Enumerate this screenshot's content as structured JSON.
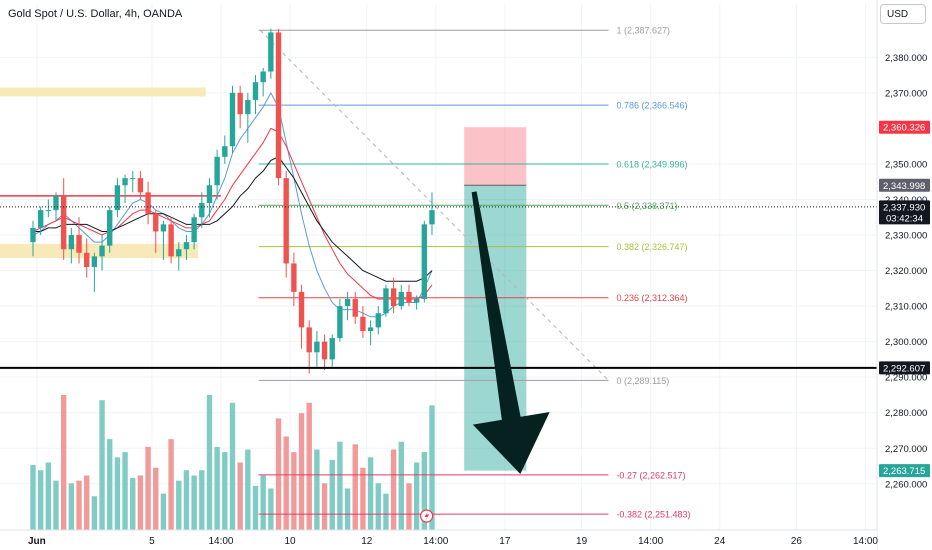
{
  "header": {
    "title": "Gold Spot / U.S. Dollar, 4h, OANDA",
    "currency_button": "USD"
  },
  "chart_data": {
    "type": "candlestick",
    "symbol": "Gold Spot / U.S. Dollar",
    "interval": "4h",
    "source": "OANDA",
    "ylim": [
      2247,
      2395
    ],
    "y_ticks": [
      "2,380.000",
      "2,370.000",
      "2,350.000",
      "2,340.000",
      "2,330.000",
      "2,320.000",
      "2,310.000",
      "2,300.000",
      "2,290.000",
      "2,280.000",
      "2,270.000",
      "2,260.000"
    ],
    "y_tick_values": [
      2380,
      2370,
      2350,
      2340,
      2330,
      2320,
      2310,
      2300,
      2290,
      2280,
      2270,
      2260
    ],
    "x_ticks": [
      "Jun",
      "5",
      "14:00",
      "10",
      "12",
      "14:00",
      "17",
      "19",
      "14:00",
      "24",
      "26",
      "14:00"
    ],
    "x_tick_pos": [
      0.5,
      15.5,
      24.5,
      33.5,
      43.5,
      52.5,
      61.5,
      71.5,
      80.5,
      89.5,
      99.5,
      108.5
    ],
    "x_range": [
      -4.3,
      110
    ],
    "candles": [
      [
        2328,
        2334,
        2324,
        2332
      ],
      [
        2332,
        2338,
        2330,
        2337
      ],
      [
        2337,
        2340,
        2335,
        2337
      ],
      [
        2337,
        2342,
        2334,
        2341
      ],
      [
        2341,
        2346,
        2323,
        2326
      ],
      [
        2326,
        2332,
        2322,
        2330
      ],
      [
        2330,
        2335,
        2322,
        2325
      ],
      [
        2325,
        2329,
        2318,
        2321
      ],
      [
        2321,
        2325,
        2314,
        2324
      ],
      [
        2324,
        2330,
        2320,
        2327
      ],
      [
        2327,
        2338,
        2325,
        2337
      ],
      [
        2337,
        2346,
        2335,
        2344
      ],
      [
        2344,
        2347,
        2339,
        2346
      ],
      [
        2346,
        2348,
        2342,
        2346
      ],
      [
        2346,
        2348,
        2340,
        2342
      ],
      [
        2342,
        2345,
        2333,
        2336
      ],
      [
        2336,
        2337,
        2325,
        2331
      ],
      [
        2331,
        2334,
        2323,
        2333
      ],
      [
        2333,
        2335,
        2322,
        2324
      ],
      [
        2324,
        2328,
        2320,
        2326
      ],
      [
        2326,
        2330,
        2323,
        2328
      ],
      [
        2328,
        2336,
        2326,
        2335
      ],
      [
        2335,
        2342,
        2332,
        2339
      ],
      [
        2339,
        2346,
        2335,
        2344
      ],
      [
        2344,
        2354,
        2340,
        2352
      ],
      [
        2352,
        2358,
        2350,
        2355
      ],
      [
        2355,
        2372,
        2353,
        2370
      ],
      [
        2370,
        2372,
        2360,
        2364
      ],
      [
        2364,
        2370,
        2356,
        2368
      ],
      [
        2368,
        2375,
        2364,
        2373
      ],
      [
        2373,
        2377,
        2369,
        2376
      ],
      [
        2376,
        2388,
        2374,
        2387
      ],
      [
        2387,
        2388,
        2344,
        2346
      ],
      [
        2346,
        2348,
        2318,
        2322
      ],
      [
        2322,
        2325,
        2310,
        2314
      ],
      [
        2314,
        2316,
        2298,
        2304
      ],
      [
        2304,
        2306,
        2291,
        2297
      ],
      [
        2297,
        2303,
        2293,
        2300
      ],
      [
        2300,
        2302,
        2292,
        2295
      ],
      [
        2295,
        2302,
        2293,
        2301
      ],
      [
        2301,
        2312,
        2300,
        2310
      ],
      [
        2310,
        2314,
        2306,
        2312
      ],
      [
        2312,
        2314,
        2305,
        2307
      ],
      [
        2307,
        2310,
        2301,
        2303
      ],
      [
        2303,
        2306,
        2299,
        2304
      ],
      [
        2304,
        2310,
        2302,
        2308
      ],
      [
        2308,
        2316,
        2307,
        2315
      ],
      [
        2315,
        2318,
        2308,
        2310
      ],
      [
        2310,
        2316,
        2309,
        2314
      ],
      [
        2314,
        2316,
        2310,
        2311
      ],
      [
        2311,
        2313,
        2309,
        2312
      ],
      [
        2312,
        2334,
        2311,
        2333
      ],
      [
        2333,
        2342,
        2330,
        2337
      ]
    ],
    "volume": [
      25,
      23,
      26,
      19,
      52,
      18,
      19,
      21,
      13,
      50,
      35,
      28,
      30,
      20,
      21,
      32,
      24,
      14,
      35,
      19,
      23,
      21,
      23,
      52,
      32,
      30,
      49,
      26,
      31,
      17,
      21,
      16,
      43,
      36,
      30,
      45,
      49,
      31,
      18,
      27,
      34,
      16,
      33,
      24,
      28,
      18,
      14,
      31,
      34,
      18,
      26,
      30,
      48
    ],
    "volume_max": 52,
    "series": [
      {
        "name": "",
        "values": [
          2330,
          2331,
          2333,
          2334,
          2336,
          2334,
          2332,
          2330,
          2328,
          2328,
          2330,
          2333,
          2336,
          2339,
          2340,
          2339,
          2337,
          2336,
          2334,
          2332,
          2331,
          2331,
          2333,
          2336,
          2341,
          2346,
          2353,
          2357,
          2360,
          2363,
          2366,
          2370,
          2366,
          2356,
          2346,
          2336,
          2327,
          2320,
          2315,
          2311,
          2309,
          2309,
          2309,
          2308,
          2307,
          2307,
          2308,
          2310,
          2311,
          2311,
          2311,
          2315,
          2320
        ]
      },
      {
        "name": "",
        "values": [
          2331,
          2332,
          2333,
          2334,
          2335,
          2334,
          2333,
          2332,
          2331,
          2330,
          2331,
          2332,
          2334,
          2336,
          2337,
          2337,
          2336,
          2335,
          2334,
          2333,
          2332,
          2332,
          2333,
          2334,
          2337,
          2340,
          2344,
          2347,
          2350,
          2353,
          2356,
          2360,
          2359,
          2355,
          2350,
          2345,
          2340,
          2335,
          2330,
          2326,
          2322,
          2319,
          2317,
          2315,
          2313,
          2312,
          2312,
          2312,
          2312,
          2312,
          2312,
          2313,
          2316
        ]
      },
      {
        "name": "",
        "values": [
          2331,
          2331,
          2332,
          2332,
          2333,
          2333,
          2333,
          2333,
          2332,
          2331,
          2331,
          2332,
          2333,
          2334,
          2335,
          2336,
          2336,
          2336,
          2335,
          2334,
          2333,
          2333,
          2333,
          2333,
          2334,
          2336,
          2338,
          2341,
          2343,
          2346,
          2348,
          2351,
          2352,
          2349,
          2346,
          2342,
          2338,
          2334,
          2331,
          2328,
          2326,
          2324,
          2322,
          2320,
          2319,
          2318,
          2317,
          2317,
          2317,
          2317,
          2317,
          2318,
          2320
        ]
      }
    ],
    "fibonacci": [
      {
        "label": "1 (2,387.627)",
        "value": 2387.627,
        "color": "#9e9e9e"
      },
      {
        "label": "0.786 (2,366.546)",
        "value": 2366.546,
        "color": "#5b9cd6"
      },
      {
        "label": "0.618 (2,349.996)",
        "value": 2349.996,
        "color": "#3ab59b"
      },
      {
        "label": "0.5 (2,338.371)",
        "value": 2338.371,
        "color": "#4caf50"
      },
      {
        "label": "0.382 (2,326.747)",
        "value": 2326.747,
        "color": "#a8c23a"
      },
      {
        "label": "0.236 (2,312.364)",
        "value": 2312.364,
        "color": "#e0454d"
      },
      {
        "label": "0 (2,289.115)",
        "value": 2289.115,
        "color": "#9e9e9e"
      },
      {
        "label": "-0.27 (2,262.517)",
        "value": 2262.517,
        "color": "#e03b6a"
      },
      {
        "label": "-0.382 (2,251.483)",
        "value": 2251.483,
        "color": "#e03b6a"
      }
    ],
    "price_labels": [
      {
        "text": "2,360.326",
        "value": 2360.326,
        "bg": "#f23645",
        "fg": "#ffffff"
      },
      {
        "text": "2,343.998",
        "value": 2343.998,
        "bg": "#5d606b",
        "fg": "#ffffff"
      },
      {
        "text": "2,337.930",
        "sub": "03:42:34",
        "value": 2337.93,
        "bg": "#131722",
        "fg": "#ffffff"
      },
      {
        "text": "2,292.607",
        "value": 2292.607,
        "bg": "#131722",
        "fg": "#ffffff"
      },
      {
        "text": "2,263.715",
        "value": 2263.715,
        "bg": "#26a69a",
        "fg": "#ffffff"
      }
    ],
    "horizontal_line": 2292.607,
    "resistance_line": 2341,
    "supply_zone": [
      2369,
      2371.5
    ],
    "demand_zone": [
      2323.5,
      2327.5
    ],
    "position": {
      "stop": 2360.326,
      "entry": 2343.998,
      "target": 2263.715
    },
    "current_price": 2337.93,
    "colors": {
      "up": "#26a69a",
      "down": "#ef5350",
      "vol_up": "#80cbc4",
      "vol_down": "#f19a9a"
    }
  }
}
